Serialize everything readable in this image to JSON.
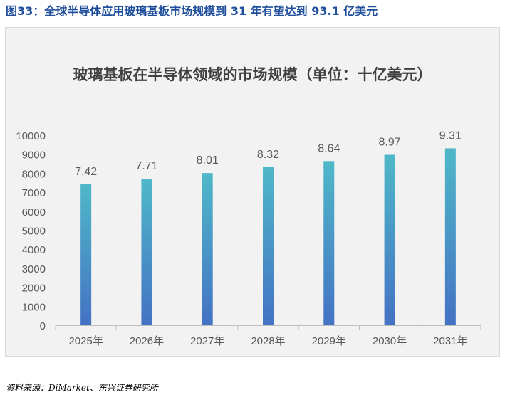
{
  "caption": "图33：全球半导体应用玻璃基板市场规模到 31 年有望达到 93.1 亿美元",
  "source": "资料来源：DiMarket、东兴证券研究所",
  "colors": {
    "caption": "#1f4e9a",
    "bar_top": "#4fb8c8",
    "bar_bottom": "#4472c4",
    "panel_bg": "#f2f2f2"
  },
  "chart_data": {
    "type": "bar",
    "title": "玻璃基板在半导体领域的市场规模（单位：十亿美元）",
    "categories": [
      "2025年",
      "2026年",
      "2027年",
      "2028年",
      "2029年",
      "2030年",
      "2031年"
    ],
    "values": [
      7.42,
      7.71,
      8.01,
      8.32,
      8.64,
      8.97,
      9.31
    ],
    "data_labels": [
      "7.42",
      "7.71",
      "8.01",
      "8.32",
      "8.64",
      "8.97",
      "9.31"
    ],
    "y_ticks": [
      "0",
      "1000",
      "2000",
      "3000",
      "4000",
      "5000",
      "6000",
      "7000",
      "8000",
      "9000",
      "10000"
    ],
    "ylim": [
      0,
      10000
    ],
    "value_scale": 1000,
    "grid": false,
    "legend": "none"
  }
}
